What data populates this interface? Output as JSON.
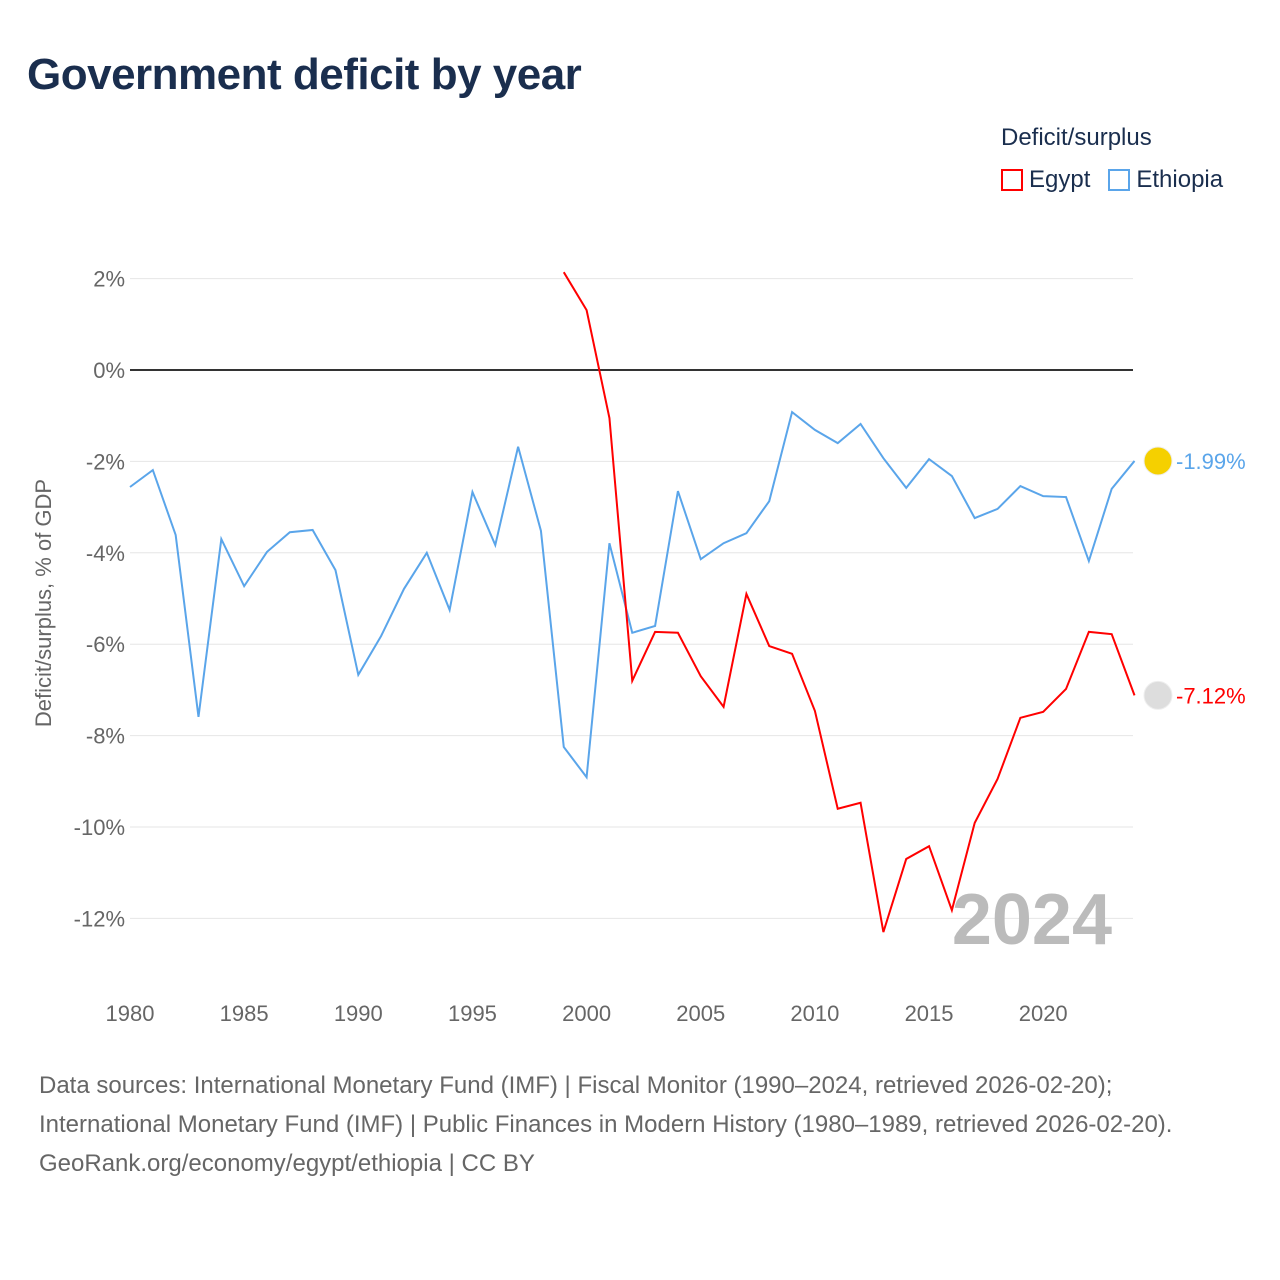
{
  "title": "Government deficit by year",
  "legend": {
    "title": "Deficit/surplus",
    "items": [
      {
        "label": "Egypt",
        "color": "#ff0000"
      },
      {
        "label": "Ethiopia",
        "color": "#5aa5ea"
      }
    ]
  },
  "watermark_year": "2024",
  "sources": [
    "Data sources: International Monetary Fund (IMF) | Fiscal Monitor (1990–2024, retrieved 2026-02-20); International Monetary Fund (IMF) | Public Finances in Modern History (1980–1989, retrieved 2026-02-20).",
    "GeoRank.org/economy/egypt/ethiopia | CC BY"
  ],
  "chart_data": {
    "type": "line",
    "title": "Government deficit by year",
    "ylabel": "Deficit/surplus, % of GDP",
    "xlim": [
      1980,
      2024
    ],
    "ylim": [
      -13,
      2.5
    ],
    "xticks": [
      1980,
      1985,
      1990,
      1995,
      2000,
      2005,
      2010,
      2015,
      2020
    ],
    "yticks": [
      2,
      0,
      -2,
      -4,
      -6,
      -8,
      -10,
      -12
    ],
    "ytick_labels": [
      "2%",
      "0%",
      "-2%",
      "-4%",
      "-6%",
      "-8%",
      "-10%",
      "-12%"
    ],
    "series": [
      {
        "name": "Ethiopia",
        "color": "#5aa5ea",
        "end_label": "-1.99%",
        "x": [
          1980,
          1981,
          1982,
          1983,
          1984,
          1985,
          1986,
          1987,
          1988,
          1989,
          1990,
          1991,
          1992,
          1993,
          1994,
          1995,
          1996,
          1997,
          1998,
          1999,
          2000,
          2001,
          2002,
          2003,
          2004,
          2005,
          2006,
          2007,
          2008,
          2009,
          2010,
          2011,
          2012,
          2013,
          2014,
          2015,
          2016,
          2017,
          2018,
          2019,
          2020,
          2021,
          2022,
          2023,
          2024
        ],
        "values": [
          -2.56,
          -2.19,
          -3.61,
          -7.59,
          -3.7,
          -4.73,
          -3.98,
          -3.55,
          -3.5,
          -4.38,
          -6.67,
          -5.82,
          -4.79,
          -4.0,
          -5.25,
          -2.67,
          -3.83,
          -1.68,
          -3.52,
          -8.25,
          -8.91,
          -3.79,
          -5.75,
          -5.6,
          -2.65,
          -4.14,
          -3.79,
          -3.57,
          -2.87,
          -0.92,
          -1.31,
          -1.6,
          -1.18,
          -1.93,
          -2.58,
          -1.95,
          -2.32,
          -3.24,
          -3.04,
          -2.54,
          -2.76,
          -2.78,
          -4.18,
          -2.6,
          -1.99
        ]
      },
      {
        "name": "Egypt",
        "color": "#ff0000",
        "end_label": "-7.12%",
        "x": [
          1999,
          2000,
          2001,
          2002,
          2003,
          2004,
          2005,
          2006,
          2007,
          2008,
          2009,
          2010,
          2011,
          2012,
          2013,
          2014,
          2015,
          2016,
          2017,
          2018,
          2019,
          2020,
          2021,
          2022,
          2023,
          2024
        ],
        "values": [
          2.14,
          1.31,
          -1.05,
          -6.8,
          -5.73,
          -5.75,
          -6.7,
          -7.37,
          -4.9,
          -6.04,
          -6.21,
          -7.46,
          -9.6,
          -9.47,
          -12.3,
          -10.7,
          -10.42,
          -11.82,
          -9.91,
          -8.95,
          -7.61,
          -7.48,
          -6.98,
          -5.73,
          -5.78,
          -7.12
        ]
      }
    ]
  }
}
